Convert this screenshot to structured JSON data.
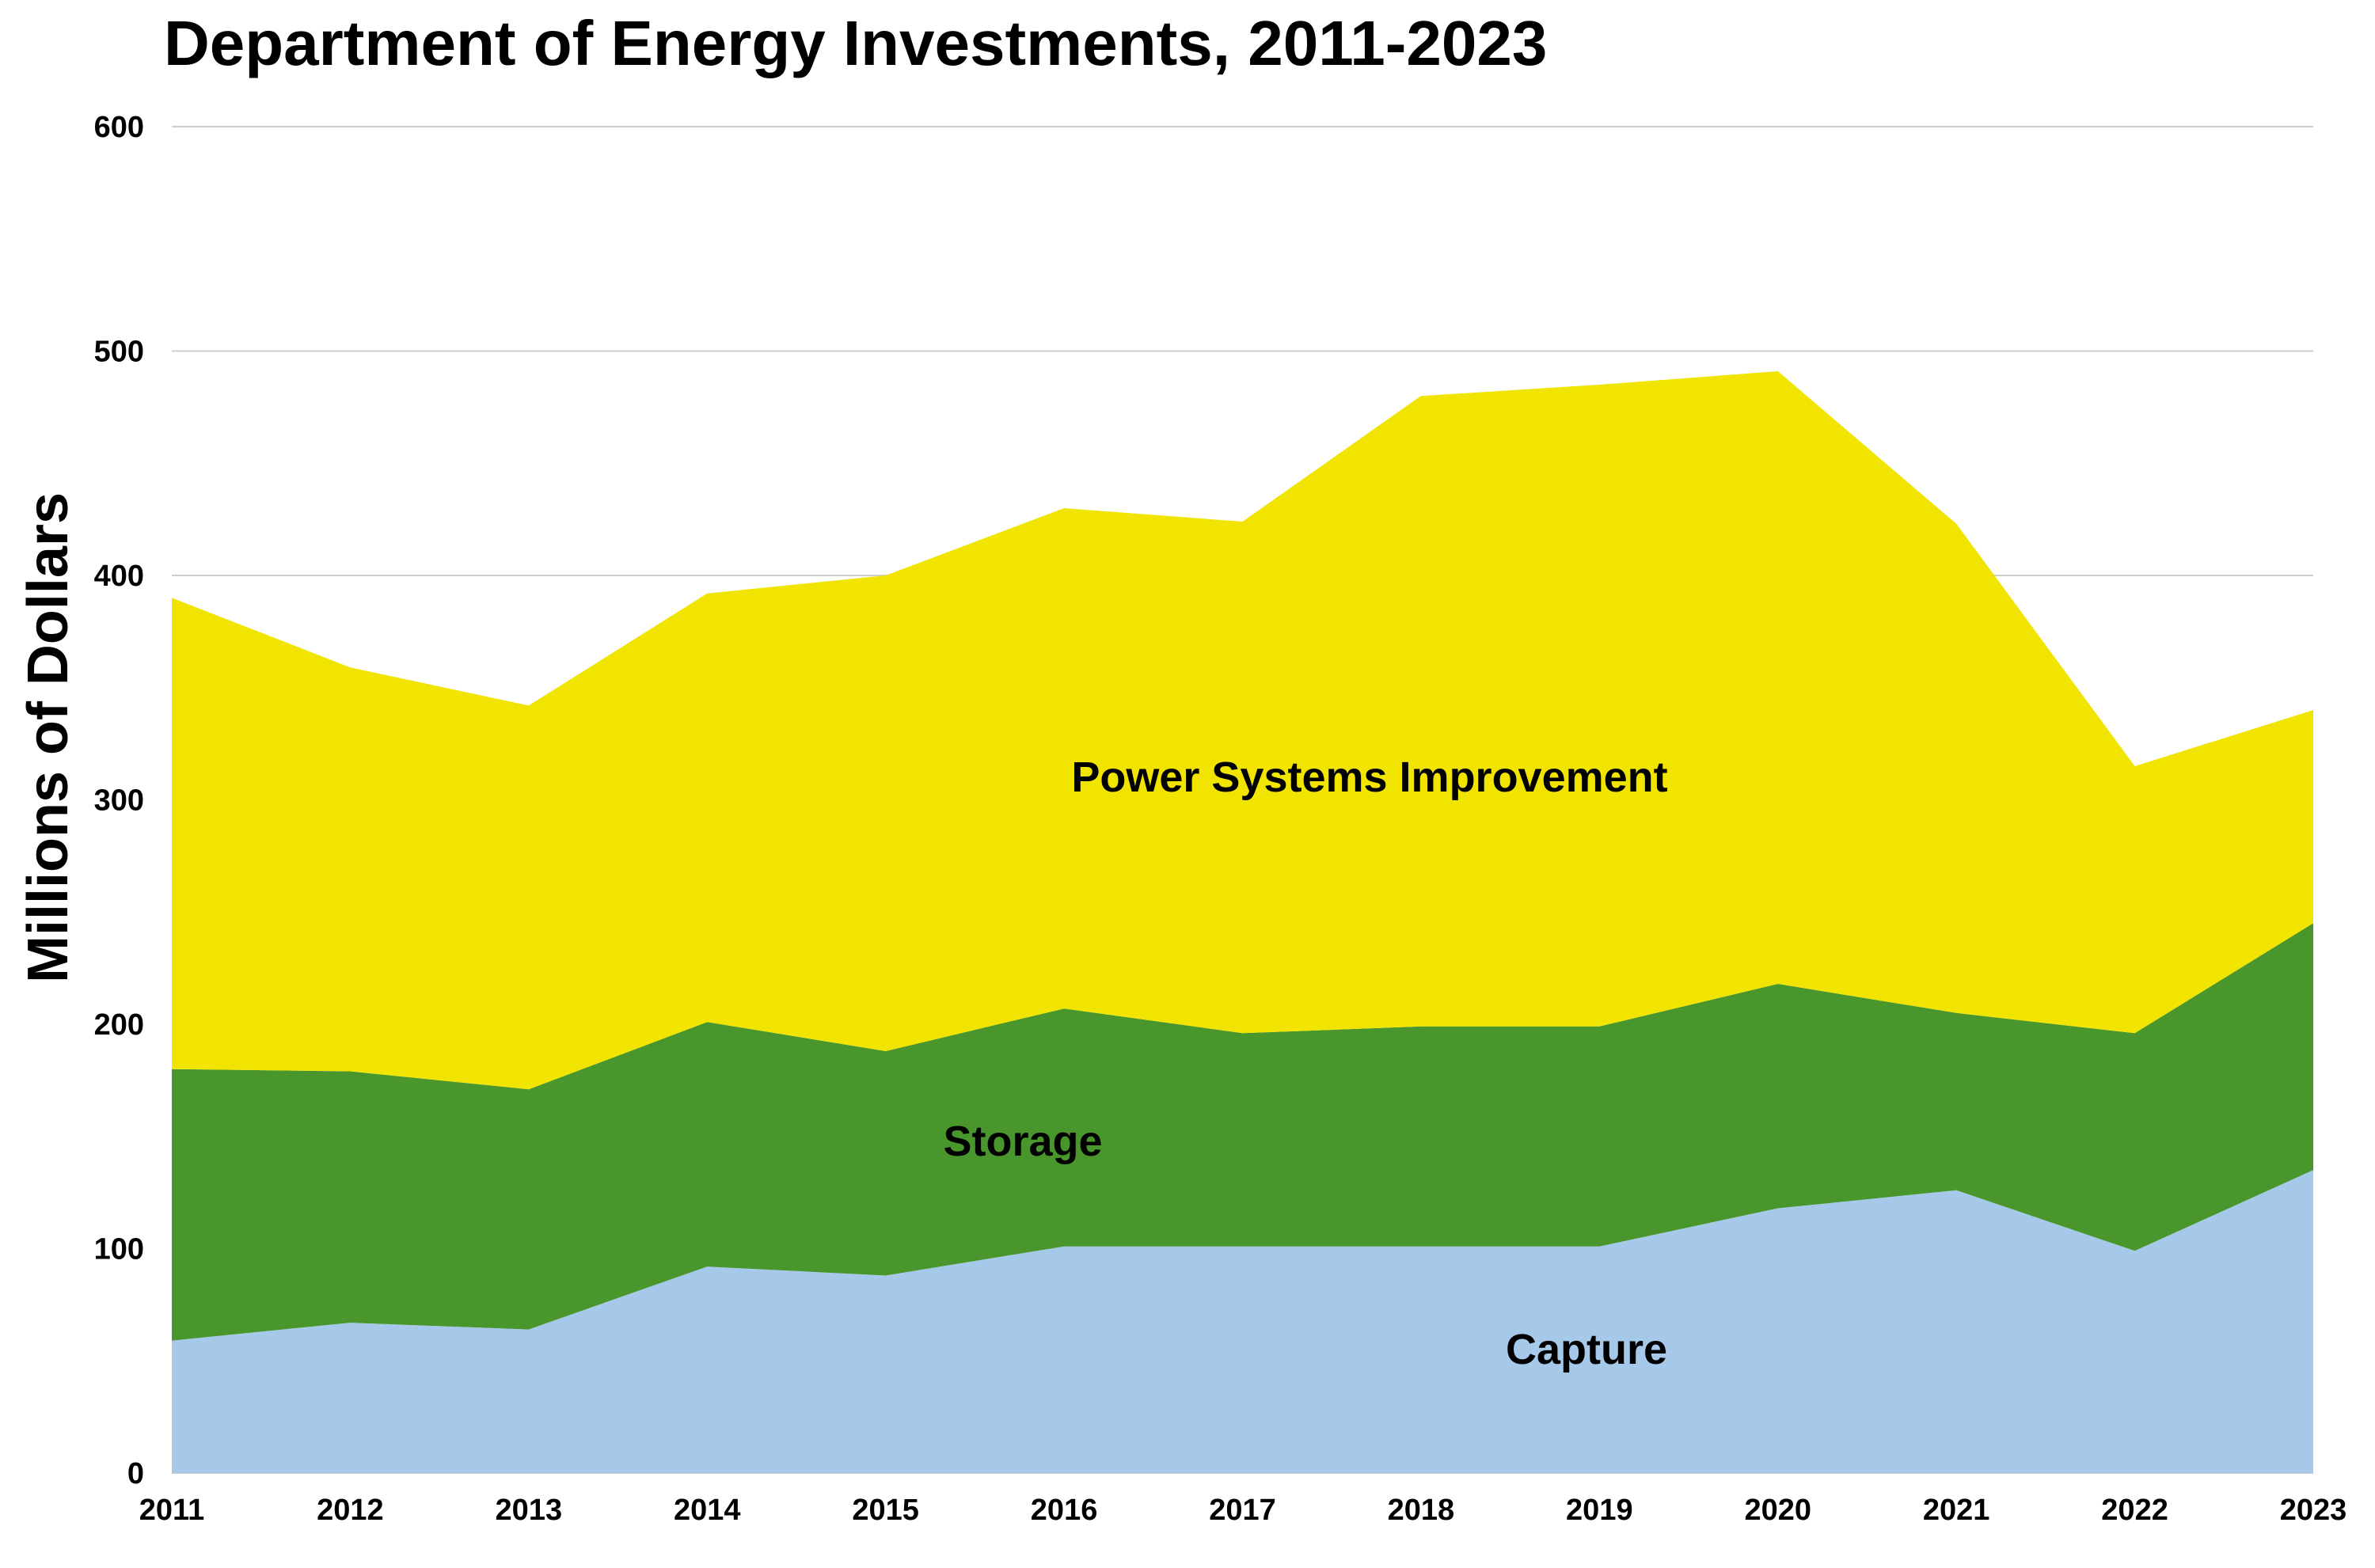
{
  "chart_data": {
    "type": "area",
    "stacked": true,
    "title": "Department of Energy Investments, 2011-2023",
    "xlabel": "",
    "ylabel": "Millions of Dollars",
    "ylim": [
      0,
      600
    ],
    "yticks": [
      "0",
      "100",
      "200",
      "300",
      "400",
      "500",
      "600"
    ],
    "grid": true,
    "legend": "inline labels",
    "categories": [
      "2011",
      "2012",
      "2013",
      "2014",
      "2015",
      "2016",
      "2017",
      "2018",
      "2019",
      "2020",
      "2021",
      "2022",
      "2023"
    ],
    "series": [
      {
        "name": "Capture",
        "color": "#a6c9ea",
        "values": [
          59,
          67,
          64,
          92,
          88,
          101,
          101,
          101,
          101,
          118,
          126,
          99,
          135
        ]
      },
      {
        "name": "Storage",
        "color": "#48962c",
        "values": [
          121,
          112,
          107,
          109,
          100,
          106,
          95,
          98,
          98,
          100,
          79,
          97,
          110
        ]
      },
      {
        "name": "Power Systems Improvement",
        "color": "#f0e400",
        "values": [
          210,
          180,
          171,
          191,
          212,
          223,
          228,
          281,
          286,
          273,
          218,
          119,
          95
        ]
      }
    ]
  }
}
